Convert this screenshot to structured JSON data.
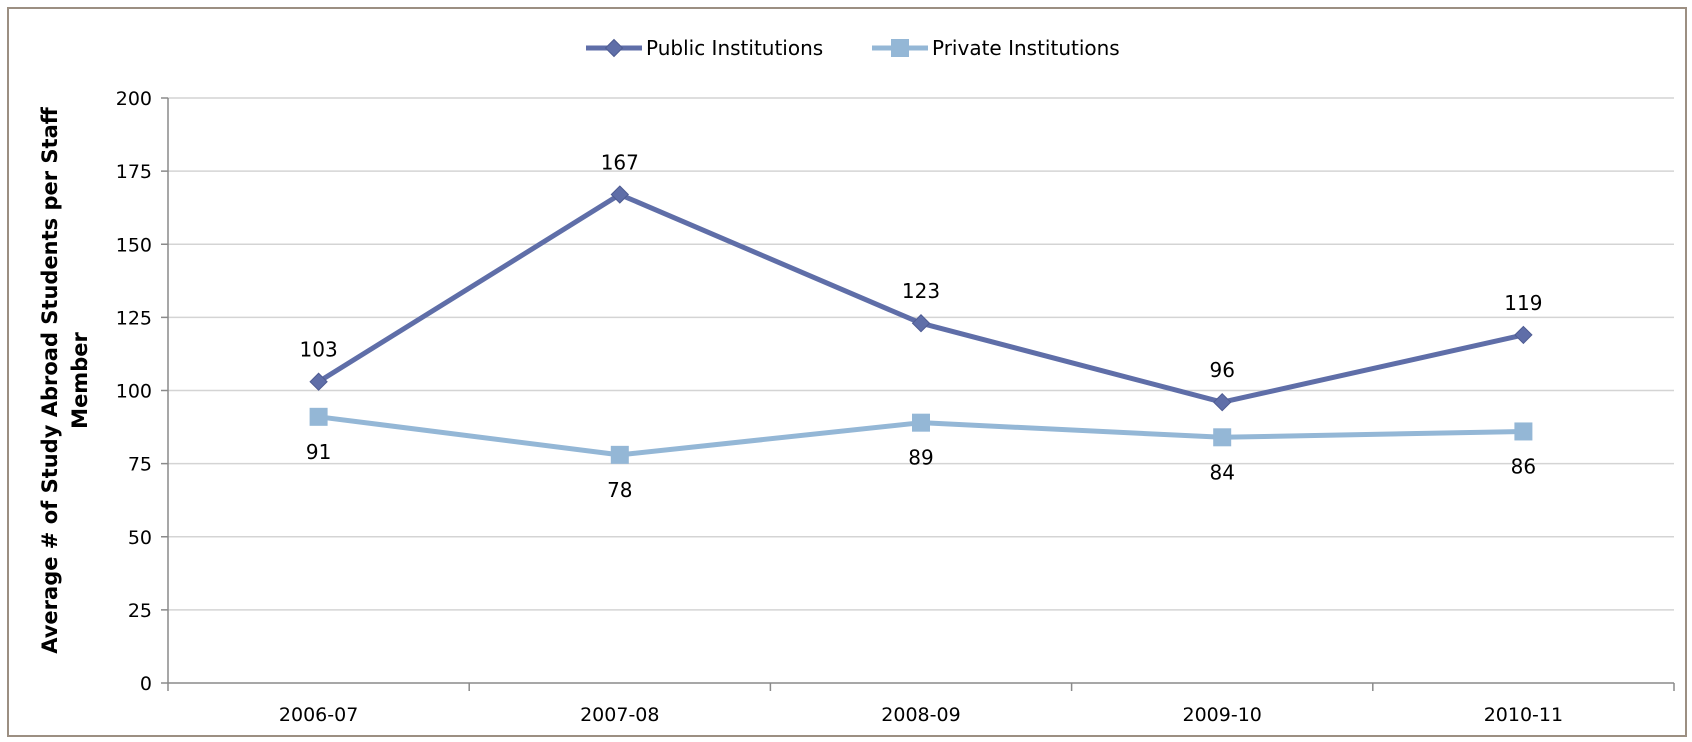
{
  "chart_data": {
    "type": "line",
    "title": "",
    "xlabel": "",
    "ylabel_lines": [
      "Average # of Study Abroad Students per Staff",
      "Member"
    ],
    "categories": [
      "2006-07",
      "2007-08",
      "2008-09",
      "2009-10",
      "2010-11"
    ],
    "ylim": [
      0,
      200
    ],
    "yticks": [
      0,
      25,
      50,
      75,
      100,
      125,
      150,
      175,
      200
    ],
    "grid": true,
    "legend_position": "top",
    "series": [
      {
        "name": "Public Institutions",
        "values": [
          103,
          167,
          123,
          96,
          119
        ],
        "color": "#5f6ea8",
        "marker": "diamond",
        "label_position": "above"
      },
      {
        "name": "Private Institutions",
        "values": [
          91,
          78,
          89,
          84,
          86
        ],
        "color": "#94b7d6",
        "marker": "square",
        "label_position": "below"
      }
    ]
  }
}
